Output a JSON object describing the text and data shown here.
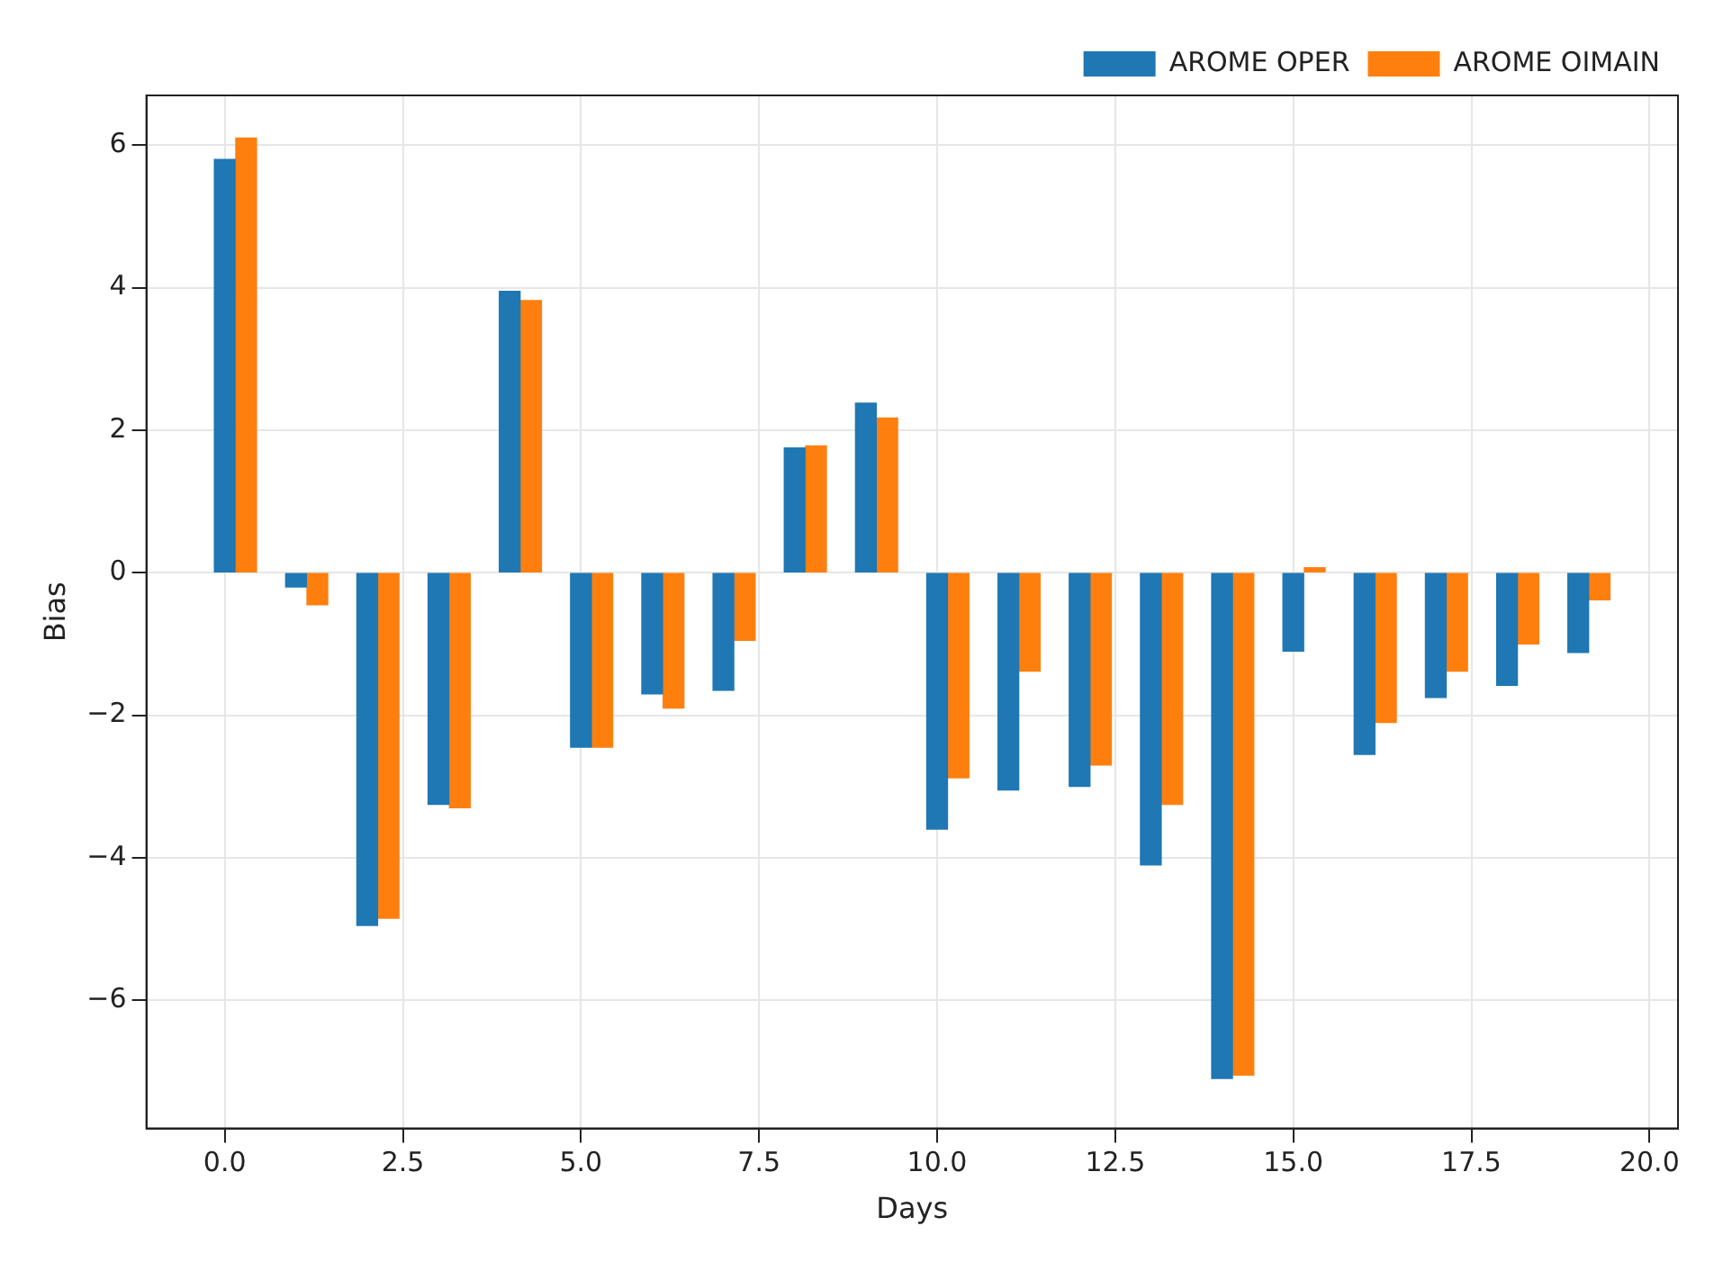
{
  "chart_data": {
    "type": "bar",
    "xlabel": "Days",
    "ylabel": "Bias",
    "xlim": [
      -1.1,
      20.4
    ],
    "ylim": [
      -7.8,
      6.7
    ],
    "xticks": [
      {
        "value": 0,
        "label": "0.0"
      },
      {
        "value": 2.5,
        "label": "2.5"
      },
      {
        "value": 5,
        "label": "5.0"
      },
      {
        "value": 7.5,
        "label": "7.5"
      },
      {
        "value": 10,
        "label": "10.0"
      },
      {
        "value": 12.5,
        "label": "12.5"
      },
      {
        "value": 15,
        "label": "15.0"
      },
      {
        "value": 17.5,
        "label": "17.5"
      },
      {
        "value": 20,
        "label": "20.0"
      }
    ],
    "yticks": [
      -6,
      -4,
      -2,
      0,
      2,
      4,
      6
    ],
    "grid": true,
    "legend": "top right",
    "series": [
      {
        "name": "AROME OPER",
        "color": "#1f77b4",
        "x": [
          0,
          1,
          2,
          3,
          4,
          5,
          6,
          7,
          8,
          9,
          10,
          11,
          12,
          13,
          14,
          15,
          16,
          17,
          18,
          19
        ],
        "values": [
          5.8,
          -0.2,
          -4.95,
          -3.25,
          3.95,
          -2.45,
          -1.7,
          -1.65,
          1.75,
          2.38,
          -3.6,
          -3.05,
          -3.0,
          -4.1,
          -7.1,
          -1.1,
          -2.55,
          -1.75,
          -1.58,
          -1.12
        ]
      },
      {
        "name": "AROME OIMAIN",
        "color": "#ff7f0e",
        "x": [
          0.3,
          1.3,
          2.3,
          3.3,
          4.3,
          5.3,
          6.3,
          7.3,
          8.3,
          9.3,
          10.3,
          11.3,
          12.3,
          13.3,
          14.3,
          15.3,
          16.3,
          17.3,
          18.3,
          19.3
        ],
        "values": [
          6.1,
          -0.45,
          -4.85,
          -3.3,
          3.82,
          -2.45,
          -1.9,
          -0.95,
          1.78,
          2.17,
          -2.88,
          -1.38,
          -2.7,
          -3.25,
          -7.05,
          0.07,
          -2.1,
          -1.38,
          -1.0,
          -0.38
        ]
      }
    ]
  }
}
